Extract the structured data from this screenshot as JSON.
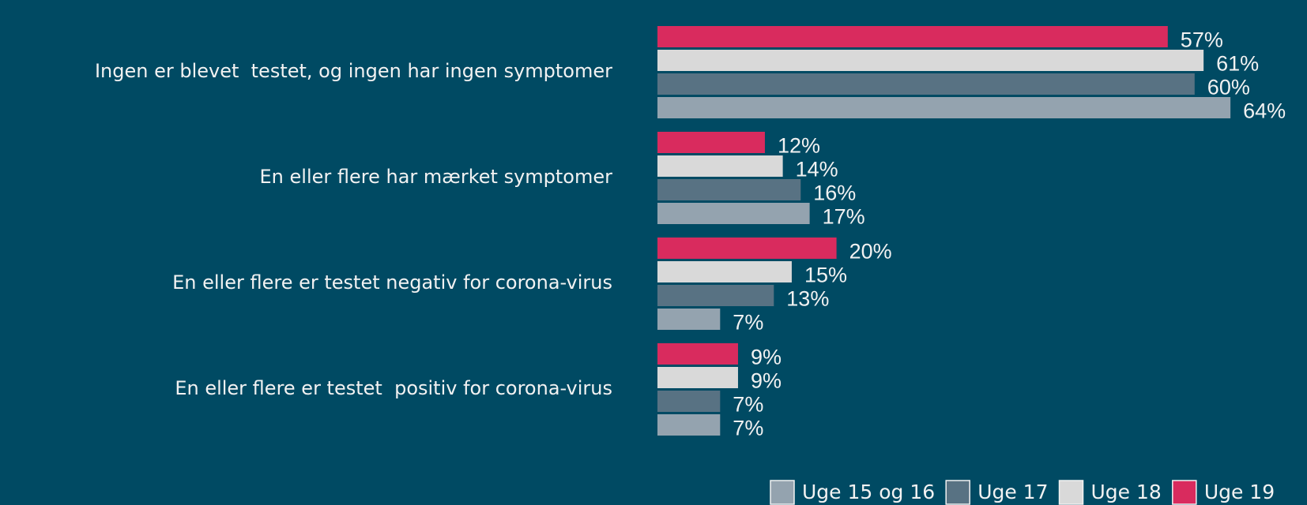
{
  "chart_data": {
    "type": "hbar",
    "categories": [
      "Ingen er blevet  testet, og ingen har ingen symptomer",
      "En eller flere har mærket symptomer",
      "En eller flere er testet negativ for corona-virus",
      "En eller flere er testet  positiv for corona-virus"
    ],
    "series": [
      {
        "name": "Uge 15 og 16",
        "color": "#94a3af",
        "values": [
          64,
          17,
          7,
          7
        ],
        "value_labels": [
          "64%",
          "17%",
          "7%",
          "7%"
        ]
      },
      {
        "name": "Uge 17",
        "color": "#587283",
        "values": [
          60,
          16,
          13,
          7
        ],
        "value_labels": [
          "60%",
          "16%",
          "13%",
          "7%"
        ]
      },
      {
        "name": "Uge 18",
        "color": "#d9d9d9",
        "values": [
          61,
          14,
          15,
          9
        ],
        "value_labels": [
          "61%",
          "14%",
          "15%",
          "9%"
        ]
      },
      {
        "name": "Uge 19",
        "color": "#d92b5e",
        "values": [
          57,
          12,
          20,
          9
        ],
        "value_labels": [
          "57%",
          "12%",
          "20%",
          "9%"
        ]
      }
    ],
    "legend": "bottom-right"
  }
}
